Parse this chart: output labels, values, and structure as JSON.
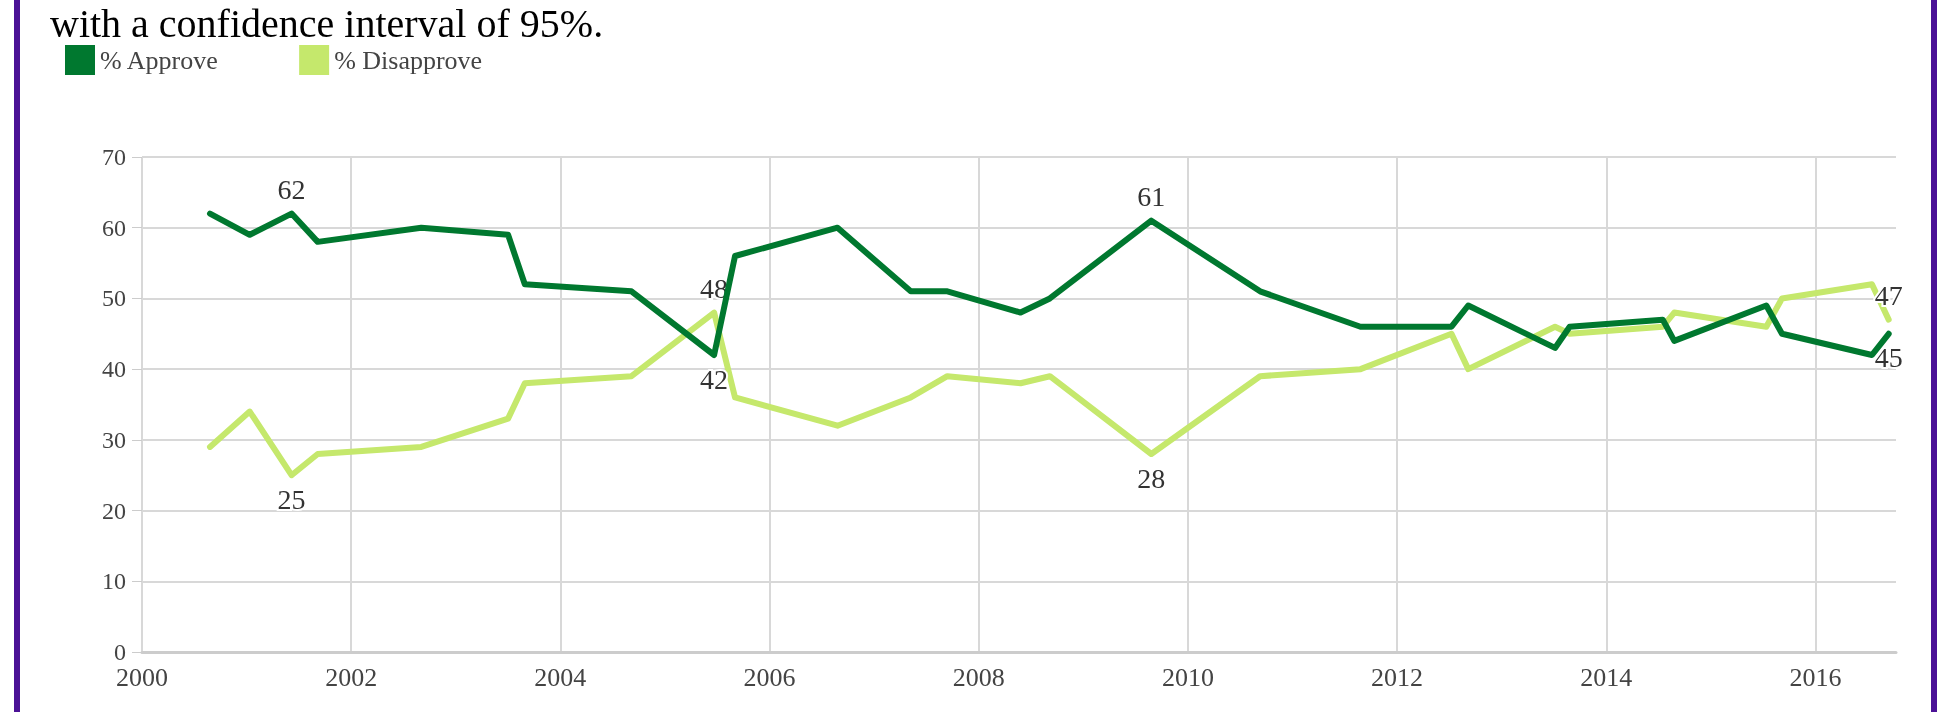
{
  "chart_data": {
    "type": "line",
    "subtitle": "with a confidence interval of 95%.",
    "x": [
      2000.65,
      2001.03,
      2001.43,
      2001.68,
      2002.67,
      2003.5,
      2003.66,
      2004.68,
      2005.47,
      2005.67,
      2006.65,
      2007.35,
      2007.7,
      2008.4,
      2008.68,
      2009.65,
      2010.69,
      2011.65,
      2012.52,
      2012.68,
      2013.51,
      2013.65,
      2014.54,
      2014.65,
      2015.53,
      2015.68,
      2016.54,
      2016.7
    ],
    "series": [
      {
        "name": "% Approve",
        "color": "#00782f",
        "values": [
          62,
          59,
          62,
          58,
          60,
          59,
          52,
          51,
          42,
          56,
          60,
          51,
          51,
          48,
          50,
          61,
          51,
          46,
          46,
          49,
          43,
          46,
          47,
          44,
          49,
          45,
          42,
          45
        ],
        "value_labels": [
          null,
          null,
          "62",
          null,
          null,
          null,
          null,
          null,
          "42",
          null,
          null,
          null,
          null,
          null,
          null,
          "61",
          null,
          null,
          null,
          null,
          null,
          null,
          null,
          null,
          null,
          null,
          null,
          "45"
        ]
      },
      {
        "name": "% Disapprove",
        "color": "#c5e86c",
        "values": [
          29,
          34,
          25,
          28,
          29,
          33,
          38,
          39,
          48,
          36,
          32,
          36,
          39,
          38,
          39,
          28,
          39,
          40,
          45,
          40,
          46,
          45,
          46,
          48,
          46,
          50,
          52,
          47
        ],
        "value_labels": [
          null,
          null,
          "25",
          null,
          null,
          null,
          null,
          null,
          "48",
          null,
          null,
          null,
          null,
          null,
          null,
          "28",
          null,
          null,
          null,
          null,
          null,
          null,
          null,
          null,
          null,
          null,
          null,
          "47"
        ]
      }
    ],
    "xlim": [
      2000,
      2016.77
    ],
    "xticks": [
      2000,
      2002,
      2004,
      2006,
      2008,
      2010,
      2012,
      2014,
      2016
    ],
    "ylim": [
      0,
      70
    ],
    "yticks": [
      0,
      10,
      20,
      30,
      40,
      50,
      60,
      70
    ],
    "grid": true,
    "legend": "top left",
    "marker": "none",
    "line_style": "solid"
  }
}
